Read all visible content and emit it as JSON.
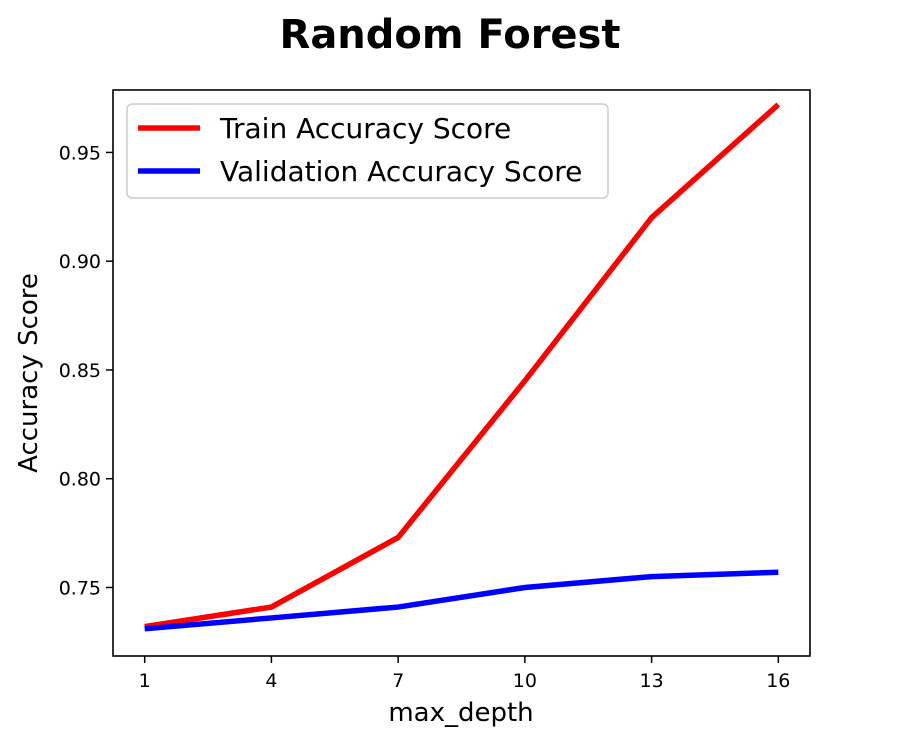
{
  "chart_data": {
    "type": "line",
    "title": "Random Forest",
    "xlabel": "max_depth",
    "ylabel": "Accuracy Score",
    "x": [
      1,
      4,
      7,
      10,
      13,
      16
    ],
    "xticks": [
      1,
      4,
      7,
      10,
      13,
      16
    ],
    "xtick_labels": [
      "1",
      "4",
      "7",
      "10",
      "13",
      "16"
    ],
    "yticks": [
      0.75,
      0.8,
      0.85,
      0.9,
      0.95
    ],
    "ytick_labels": [
      "0.75",
      "0.80",
      "0.85",
      "0.90",
      "0.95"
    ],
    "xlim": [
      0.25,
      16.75
    ],
    "ylim": [
      0.7185,
      0.9787
    ],
    "grid": false,
    "legend_position": "top-left",
    "series": [
      {
        "name": "Train Accuracy Score",
        "color": "#ff0000",
        "values": [
          0.732,
          0.741,
          0.773,
          0.845,
          0.92,
          0.972
        ]
      },
      {
        "name": "Validation Accuracy Score",
        "color": "#0000ff",
        "values": [
          0.731,
          0.736,
          0.741,
          0.75,
          0.755,
          0.757
        ]
      }
    ]
  }
}
